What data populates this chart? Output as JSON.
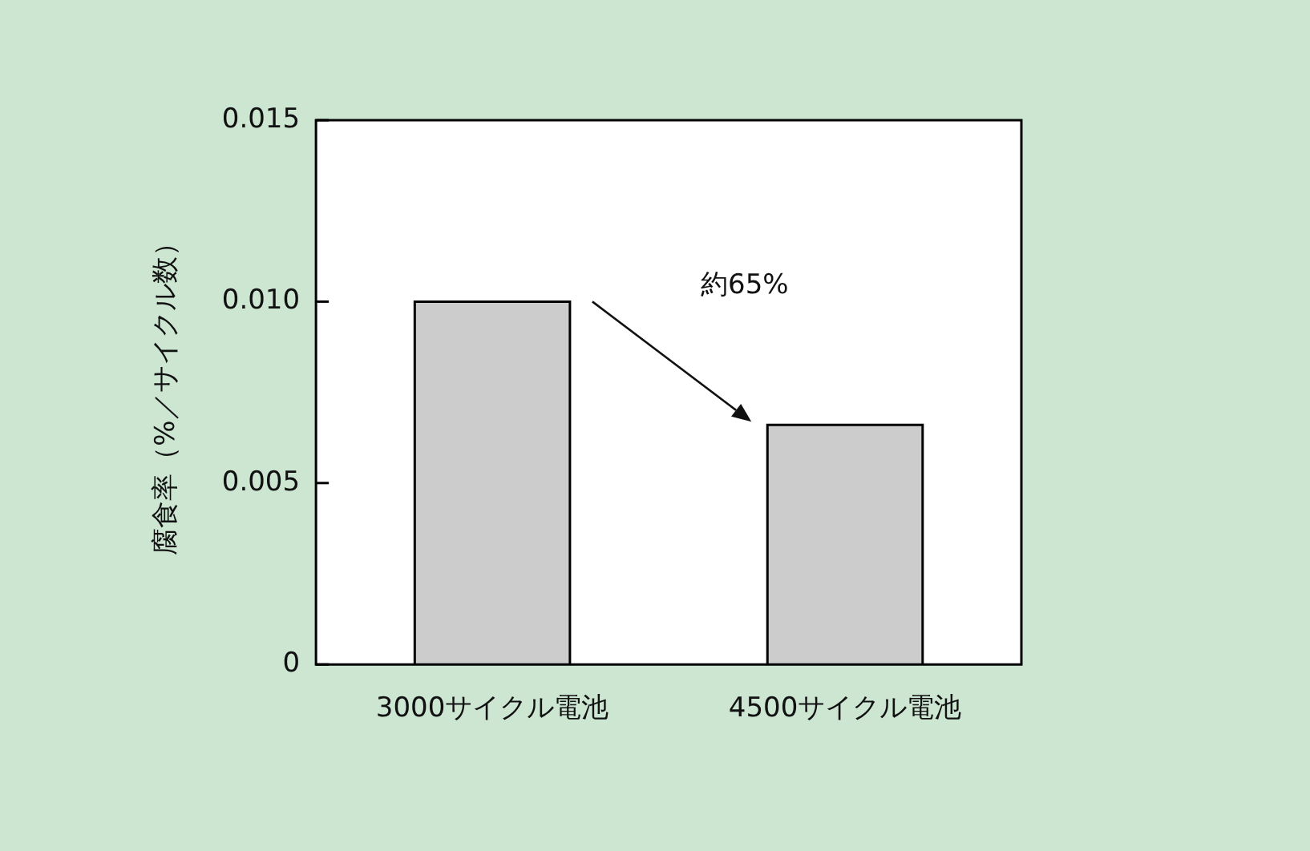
{
  "chart_data": {
    "type": "bar",
    "ylabel": "腐食率（%／サイクル数）",
    "categories": [
      "3000サイクル電池",
      "4500サイクル電池"
    ],
    "values": [
      0.01,
      0.0066
    ],
    "color": "#cccccc",
    "ylim": [
      0,
      0.015
    ],
    "yticks": [
      0,
      0.005,
      {
        "value": 0.01,
        "label": "0.010"
      },
      {
        "value": 0.015,
        "label": "0.015"
      }
    ],
    "annotations": [
      "約65%"
    ],
    "grid": false,
    "legend": false
  }
}
